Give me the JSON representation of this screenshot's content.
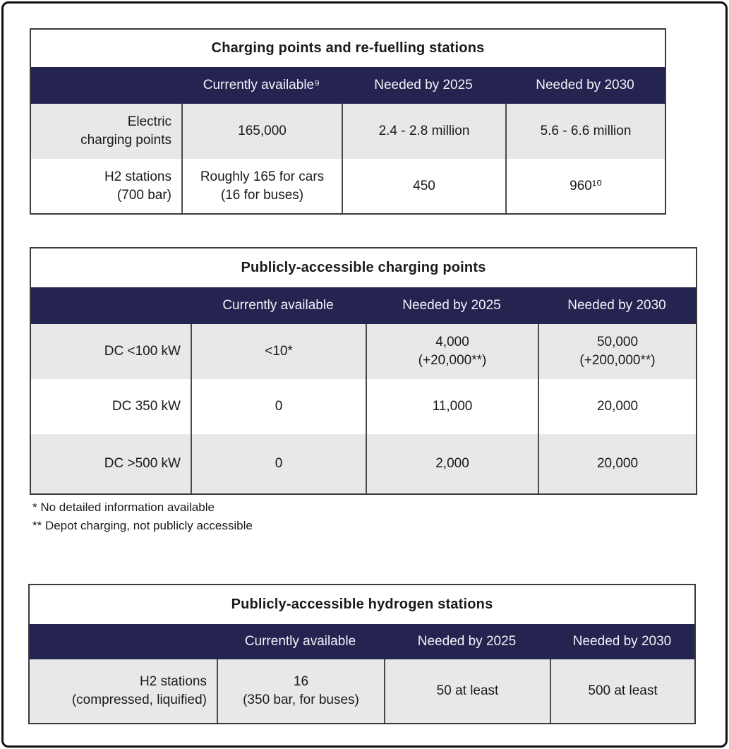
{
  "colors": {
    "header_bg": "#252350",
    "header_text": "#f2f2fa",
    "row_gray": "#e9e8e8",
    "row_white": "#ffffff",
    "body_text": "#1a1a1a",
    "divider": "#4a4a4a",
    "page_border": "#111111"
  },
  "tables": [
    {
      "title": "Charging points and re-fuelling stations",
      "columns": [
        "",
        "Currently available⁹",
        "Needed by 2025",
        "Needed by 2030"
      ],
      "rows": [
        {
          "label": "Electric\ncharging points",
          "cells": [
            "165,000",
            "2.4 - 2.8 million",
            "5.6 - 6.6 million"
          ]
        },
        {
          "label": "H2 stations\n(700 bar)",
          "cells": [
            "Roughly 165 for cars\n(16 for buses)",
            "450",
            "960¹⁰"
          ]
        }
      ]
    },
    {
      "title": "Publicly-accessible charging points",
      "columns": [
        "",
        "Currently available",
        "Needed by 2025",
        "Needed by 2030"
      ],
      "rows": [
        {
          "label": "DC <100 kW",
          "cells": [
            "<10*",
            "4,000\n(+20,000**)",
            "50,000\n(+200,000**)"
          ]
        },
        {
          "label": "DC 350 kW",
          "cells": [
            "0",
            "11,000",
            "20,000"
          ]
        },
        {
          "label": "DC >500 kW",
          "cells": [
            "0",
            "2,000",
            "20,000"
          ]
        }
      ]
    },
    {
      "title": "Publicly-accessible hydrogen stations",
      "columns": [
        "",
        "Currently available",
        "Needed by 2025",
        "Needed by 2030"
      ],
      "rows": [
        {
          "label": "H2 stations\n(compressed, liquified)",
          "cells": [
            "16\n(350 bar, for buses)",
            "50 at least",
            "500 at least"
          ]
        }
      ]
    }
  ],
  "footnotes": [
    "* No detailed information available",
    "** Depot charging, not publicly accessible"
  ]
}
